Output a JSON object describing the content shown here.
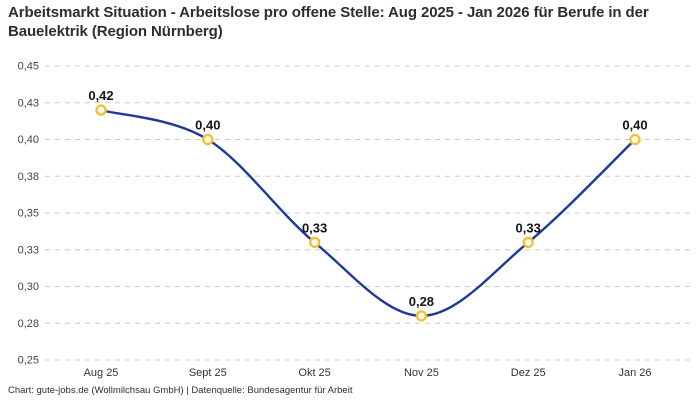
{
  "header": {
    "title": "Arbeitsmarkt Situation - Arbeitslose pro offene Stelle: Aug 2025 - Jan 2026 für Berufe in der Bauelektrik (Region Nürnberg)"
  },
  "footer": {
    "credit": "Chart: gute-jobs.de (Wollmilchsau GmbH) | Datenquelle: Bundesagentur für Arbeit"
  },
  "chart_data": {
    "type": "line",
    "title": "Arbeitsmarkt Situation - Arbeitslose pro offene Stelle: Aug 2025 - Jan 2026 für Berufe in der Bauelektrik (Region Nürnberg)",
    "categories": [
      "Aug 25",
      "Sept 25",
      "Okt 25",
      "Nov 25",
      "Dez 25",
      "Jan 26"
    ],
    "values": [
      0.42,
      0.4,
      0.33,
      0.28,
      0.33,
      0.4
    ],
    "value_labels": [
      "0,42",
      "0,40",
      "0,33",
      "0,28",
      "0,33",
      "0,40"
    ],
    "ylim": [
      0.25,
      0.45
    ],
    "yticks": [
      {
        "value": 0.45,
        "label": "0,45"
      },
      {
        "value": 0.425,
        "label": "0,43"
      },
      {
        "value": 0.4,
        "label": "0,40"
      },
      {
        "value": 0.375,
        "label": "0,38"
      },
      {
        "value": 0.35,
        "label": "0,35"
      },
      {
        "value": 0.325,
        "label": "0,33"
      },
      {
        "value": 0.3,
        "label": "0,30"
      },
      {
        "value": 0.275,
        "label": "0,28"
      },
      {
        "value": 0.25,
        "label": "0,25"
      }
    ],
    "grid": "dashed horizontal",
    "legend": "none",
    "line_smooth": true,
    "colors": {
      "line": "#1e3a96",
      "marker_stroke": "#f5c132",
      "marker_fill": "#ffffff",
      "grid": "#cccccc",
      "tick_label": "#444444",
      "data_label": "#141414"
    }
  }
}
